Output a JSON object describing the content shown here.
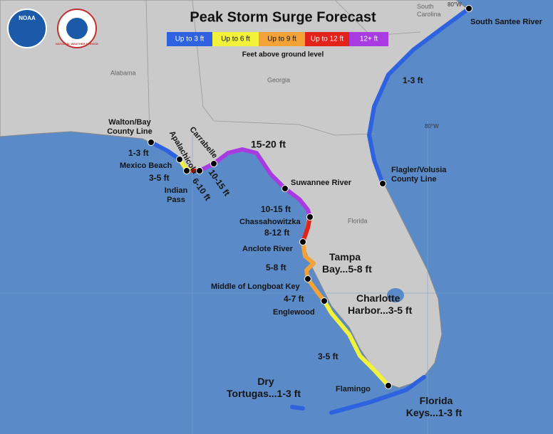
{
  "header": {
    "title": "Peak Storm Surge Forecast",
    "legend": [
      {
        "label": "Up to 3 ft",
        "color": "#2e62de"
      },
      {
        "label": "Up to 6 ft",
        "color": "#f2f23a"
      },
      {
        "label": "Up to 9 ft",
        "color": "#f2a236"
      },
      {
        "label": "Up to 12 ft",
        "color": "#e2231a"
      },
      {
        "label": "12+ ft",
        "color": "#a83ce0"
      }
    ],
    "legend_note": "Feet above ground level"
  },
  "logos": {
    "noaa": "NOAA",
    "nws": "NATIONAL WEATHER SERVICE"
  },
  "states": {
    "alabama": "Alabama",
    "georgia": "Georgia",
    "florida": "Florida",
    "south_carolina": [
      "South",
      "Carolina"
    ]
  },
  "longitudes": [
    "80°W",
    "80°W"
  ],
  "labels": {
    "south_santee": "South Santee River",
    "atlantic_amount": "1-3 ft",
    "flagler": [
      "Flagler/Volusia",
      "County Line"
    ],
    "walton": [
      "Walton/Bay",
      "County Line"
    ],
    "apalachicola": "Apalachicola",
    "carrabelle": "Carrabelle",
    "big_bend_amount": "15-20 ft",
    "panhandle_amount": "1-3 ft",
    "mexico_beach": "Mexico Beach",
    "mexico_amount": "3-5 ft",
    "indian_pass": [
      "Indian",
      "Pass"
    ],
    "indian_amount": "6-10 ft",
    "carrabelle_amount": "10-15 ft",
    "suwannee": "Suwannee River",
    "suwannee_amount": "10-15 ft",
    "chassahowitzka": "Chassahowitzka",
    "chassa_amount": "8-12 ft",
    "anclote": "Anclote River",
    "tampa_bay": [
      "Tampa",
      "Bay...5-8 ft"
    ],
    "anclote_amount": "5-8 ft",
    "longboat": "Middle of Longboat Key",
    "longboat_amount": "4-7 ft",
    "englewood": "Englewood",
    "charlotte": [
      "Charlotte",
      "Harbor...3-5 ft"
    ],
    "sw_amount": "3-5 ft",
    "tortugas": [
      "Dry",
      "Tortugas...1-3 ft"
    ],
    "flamingo": "Flamingo",
    "keys": [
      "Florida",
      "Keys...1-3 ft"
    ]
  }
}
